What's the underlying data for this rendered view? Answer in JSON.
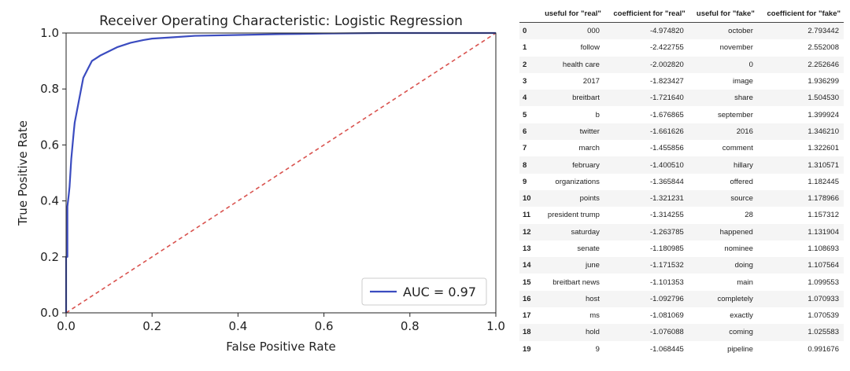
{
  "chart_data": {
    "type": "line",
    "title": "Receiver Operating Characteristic: Logistic Regression",
    "xlabel": "False Positive Rate",
    "ylabel": "True Positive Rate",
    "xlim": [
      0.0,
      1.0
    ],
    "ylim": [
      0.0,
      1.0
    ],
    "xticks": [
      "0.0",
      "0.2",
      "0.4",
      "0.6",
      "0.8",
      "1.0"
    ],
    "yticks": [
      "0.0",
      "0.2",
      "0.4",
      "0.6",
      "0.8",
      "1.0"
    ],
    "grid": false,
    "legend_position": "lower-right",
    "series": [
      {
        "name": "AUC = 0.97",
        "color": "#3b4cc0",
        "style": "solid",
        "x": [
          0.0,
          0.0,
          0.003,
          0.003,
          0.006,
          0.008,
          0.01,
          0.012,
          0.015,
          0.018,
          0.02,
          0.025,
          0.03,
          0.035,
          0.04,
          0.05,
          0.06,
          0.07,
          0.08,
          0.1,
          0.12,
          0.15,
          0.18,
          0.2,
          0.25,
          0.3,
          0.4,
          0.5,
          0.6,
          0.73,
          0.73,
          1.0
        ],
        "y": [
          0.0,
          0.2,
          0.2,
          0.38,
          0.42,
          0.45,
          0.5,
          0.55,
          0.6,
          0.65,
          0.68,
          0.72,
          0.76,
          0.8,
          0.84,
          0.87,
          0.9,
          0.91,
          0.92,
          0.935,
          0.95,
          0.965,
          0.975,
          0.98,
          0.985,
          0.99,
          0.993,
          0.996,
          0.998,
          1.0,
          1.0,
          1.0
        ]
      },
      {
        "name": "",
        "color": "#d9534f",
        "style": "dashed",
        "x": [
          0.0,
          1.0
        ],
        "y": [
          0.0,
          1.0
        ]
      }
    ]
  },
  "table": {
    "columns": [
      "",
      "useful for \"real\"",
      "coefficient for \"real\"",
      "useful for \"fake\"",
      "coefficient for \"fake\""
    ],
    "rows": [
      [
        "0",
        "000",
        "-4.974820",
        "october",
        "2.793442"
      ],
      [
        "1",
        "follow",
        "-2.422755",
        "november",
        "2.552008"
      ],
      [
        "2",
        "health care",
        "-2.002820",
        "0",
        "2.252646"
      ],
      [
        "3",
        "2017",
        "-1.823427",
        "image",
        "1.936299"
      ],
      [
        "4",
        "breitbart",
        "-1.721640",
        "share",
        "1.504530"
      ],
      [
        "5",
        "b",
        "-1.676865",
        "september",
        "1.399924"
      ],
      [
        "6",
        "twitter",
        "-1.661626",
        "2016",
        "1.346210"
      ],
      [
        "7",
        "march",
        "-1.455856",
        "comment",
        "1.322601"
      ],
      [
        "8",
        "february",
        "-1.400510",
        "hillary",
        "1.310571"
      ],
      [
        "9",
        "organizations",
        "-1.365844",
        "offered",
        "1.182445"
      ],
      [
        "10",
        "points",
        "-1.321231",
        "source",
        "1.178966"
      ],
      [
        "11",
        "president trump",
        "-1.314255",
        "28",
        "1.157312"
      ],
      [
        "12",
        "saturday",
        "-1.263785",
        "happened",
        "1.131904"
      ],
      [
        "13",
        "senate",
        "-1.180985",
        "nominee",
        "1.108693"
      ],
      [
        "14",
        "june",
        "-1.171532",
        "doing",
        "1.107564"
      ],
      [
        "15",
        "breitbart news",
        "-1.101353",
        "main",
        "1.099553"
      ],
      [
        "16",
        "host",
        "-1.092796",
        "completely",
        "1.070933"
      ],
      [
        "17",
        "ms",
        "-1.081069",
        "exactly",
        "1.070539"
      ],
      [
        "18",
        "hold",
        "-1.076088",
        "coming",
        "1.025583"
      ],
      [
        "19",
        "9",
        "-1.068445",
        "pipeline",
        "0.991676"
      ]
    ]
  }
}
